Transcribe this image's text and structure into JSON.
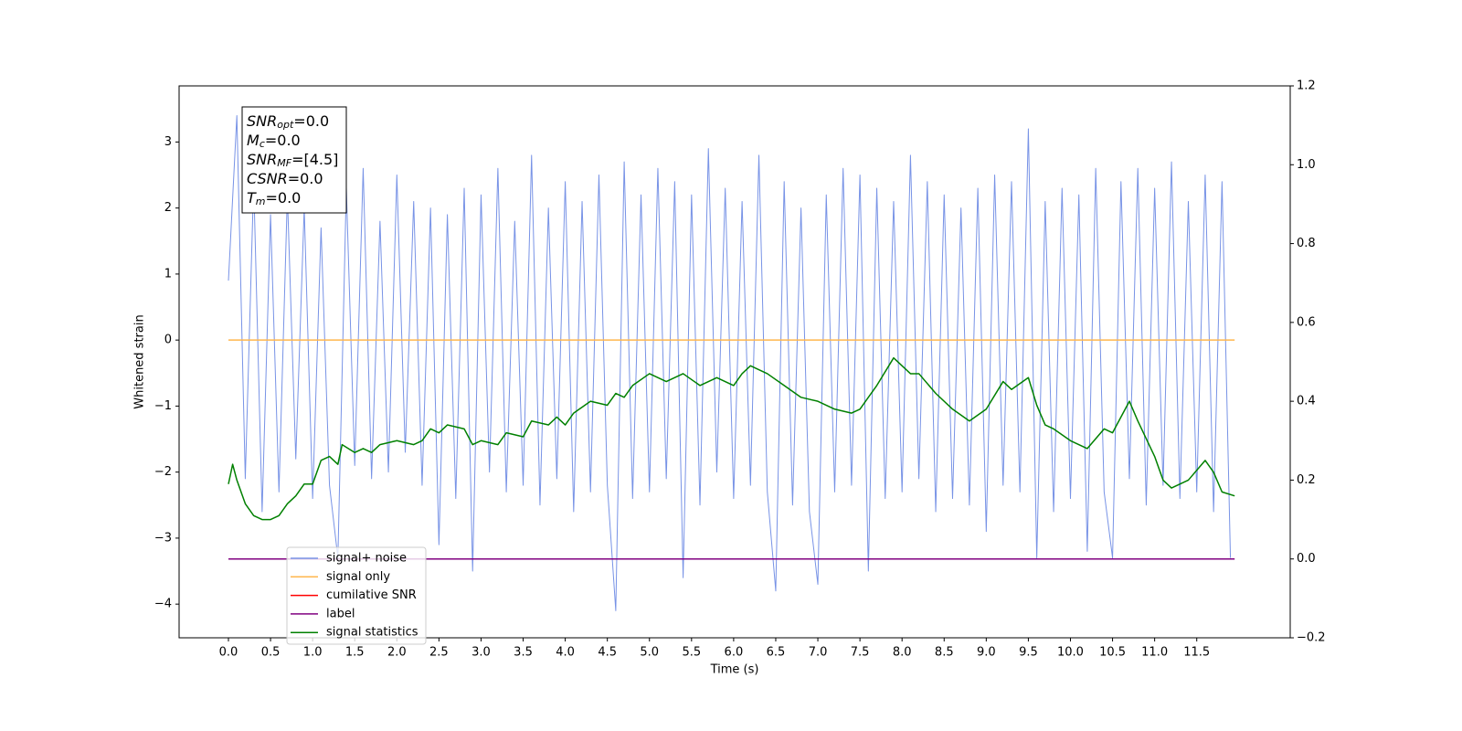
{
  "chart_data": {
    "type": "line",
    "xlabel": "Time (s)",
    "ylabel": "Whitened strain",
    "xlim": [
      -0.586,
      12.61
    ],
    "ylim": [
      -4.51,
      3.85
    ],
    "y2lim": [
      -0.2,
      1.2
    ],
    "xticks": [
      {
        "value": 0,
        "label": "0.0"
      },
      {
        "value": 0.5,
        "label": "0.5"
      },
      {
        "value": 1,
        "label": "1.0"
      },
      {
        "value": 1.5,
        "label": "1.5"
      },
      {
        "value": 2,
        "label": "2.0"
      },
      {
        "value": 2.5,
        "label": "2.5"
      },
      {
        "value": 3,
        "label": "3.0"
      },
      {
        "value": 3.5,
        "label": "3.5"
      },
      {
        "value": 4,
        "label": "4.0"
      },
      {
        "value": 4.5,
        "label": "4.5"
      },
      {
        "value": 5,
        "label": "5.0"
      },
      {
        "value": 5.5,
        "label": "5.5"
      },
      {
        "value": 6,
        "label": "6.0"
      },
      {
        "value": 6.5,
        "label": "6.5"
      },
      {
        "value": 7,
        "label": "7.0"
      },
      {
        "value": 7.5,
        "label": "7.5"
      },
      {
        "value": 8,
        "label": "8.0"
      },
      {
        "value": 8.5,
        "label": "8.5"
      },
      {
        "value": 9,
        "label": "9.0"
      },
      {
        "value": 9.5,
        "label": "9.5"
      },
      {
        "value": 10,
        "label": "10.0"
      },
      {
        "value": 10.5,
        "label": "10.5"
      },
      {
        "value": 11,
        "label": "11.0"
      },
      {
        "value": 11.5,
        "label": "11.5"
      }
    ],
    "yticks": [
      {
        "value": -4,
        "label": "−4"
      },
      {
        "value": -3,
        "label": "−3"
      },
      {
        "value": -2,
        "label": "−2"
      },
      {
        "value": -1,
        "label": "−1"
      },
      0,
      1,
      2,
      3
    ],
    "y2ticks": [
      {
        "value": -0.2,
        "label": "−0.2"
      },
      {
        "value": 0,
        "label": "0.0"
      },
      {
        "value": 0.2,
        "label": "0.2"
      },
      {
        "value": 0.4,
        "label": "0.4"
      },
      {
        "value": 0.6,
        "label": "0.6"
      },
      {
        "value": 0.8,
        "label": "0.8"
      },
      {
        "value": 1,
        "label": "1.0"
      },
      {
        "value": 1.2,
        "label": "1.2"
      }
    ],
    "annotations": [
      {
        "main": "SNR",
        "sub": "opt",
        "text": "=0.0"
      },
      {
        "main": "M",
        "sub": "c",
        "text": "=0.0"
      },
      {
        "main": "SNR",
        "sub": "MF",
        "text": "=[4.5]"
      },
      {
        "main": "CSNR",
        "sub": null,
        "text": "=0.0"
      },
      {
        "main": "T",
        "sub": "m",
        "text": "=0.0"
      }
    ],
    "series": [
      {
        "name": "signal+ noise",
        "color": "#7893e6",
        "axis": "y",
        "x": [
          0,
          0.1,
          0.2,
          0.3,
          0.4,
          0.5,
          0.6,
          0.7,
          0.8,
          0.9,
          1,
          1.1,
          1.2,
          1.3,
          1.4,
          1.5,
          1.6,
          1.7,
          1.8,
          1.9,
          2,
          2.1,
          2.2,
          2.3,
          2.4,
          2.5,
          2.6,
          2.7,
          2.8,
          2.9,
          3,
          3.1,
          3.2,
          3.3,
          3.4,
          3.5,
          3.6,
          3.7,
          3.8,
          3.9,
          4,
          4.1,
          4.2,
          4.3,
          4.4,
          4.5,
          4.6,
          4.7,
          4.8,
          4.9,
          5,
          5.1,
          5.2,
          5.3,
          5.4,
          5.5,
          5.6,
          5.7,
          5.8,
          5.9,
          6,
          6.1,
          6.2,
          6.3,
          6.4,
          6.5,
          6.6,
          6.7,
          6.8,
          6.9,
          7,
          7.1,
          7.2,
          7.3,
          7.4,
          7.5,
          7.6,
          7.7,
          7.8,
          7.9,
          8,
          8.1,
          8.2,
          8.3,
          8.4,
          8.5,
          8.6,
          8.7,
          8.8,
          8.9,
          9,
          9.1,
          9.2,
          9.3,
          9.4,
          9.5,
          9.6,
          9.7,
          9.8,
          9.9,
          10,
          10.1,
          10.2,
          10.3,
          10.4,
          10.5,
          10.6,
          10.7,
          10.8,
          10.9,
          11,
          11.1,
          11.2,
          11.3,
          11.4,
          11.5,
          11.6,
          11.7,
          11.8,
          11.9
        ],
        "values": [
          0.9,
          3.4,
          -2.1,
          2.4,
          -2.6,
          1.9,
          -2.3,
          2.2,
          -1.8,
          2.0,
          -2.4,
          1.7,
          -2.2,
          -3.3,
          2.3,
          -1.9,
          2.6,
          -2.1,
          1.8,
          -2.0,
          2.5,
          -1.7,
          2.1,
          -2.2,
          2.0,
          -3.1,
          1.9,
          -2.4,
          2.3,
          -3.5,
          2.2,
          -2.0,
          2.6,
          -2.3,
          1.8,
          -2.2,
          2.8,
          -2.5,
          2.0,
          -2.1,
          2.4,
          -2.6,
          2.1,
          -2.3,
          2.5,
          -2.2,
          -4.1,
          2.7,
          -2.4,
          2.2,
          -2.3,
          2.6,
          -2.1,
          2.4,
          -3.6,
          2.2,
          -2.5,
          2.9,
          -2.0,
          2.3,
          -2.4,
          2.1,
          -2.2,
          2.8,
          -2.3,
          -3.8,
          2.4,
          -2.5,
          2.0,
          -2.6,
          -3.7,
          2.2,
          -2.3,
          2.6,
          -2.2,
          2.5,
          -3.5,
          2.3,
          -2.4,
          2.1,
          -2.3,
          2.8,
          -2.1,
          2.4,
          -2.6,
          2.2,
          -2.4,
          2.0,
          -2.5,
          2.3,
          -2.9,
          2.5,
          -2.2,
          2.4,
          -2.3,
          3.2,
          -3.3,
          2.1,
          -2.6,
          2.3,
          -2.4,
          2.2,
          -3.2,
          2.6,
          -2.3,
          -3.3,
          2.4,
          -2.1,
          2.6,
          -2.5,
          2.3,
          -2.2,
          2.7,
          -2.4,
          2.1,
          -2.3,
          2.5,
          -2.6,
          2.4,
          -3.3
        ]
      },
      {
        "name": "signal only",
        "color": "#ffb74d",
        "axis": "y",
        "x": [
          0,
          11.95
        ],
        "values": [
          0,
          0
        ]
      },
      {
        "name": "cumilative SNR",
        "color": "#ff0000",
        "axis": "y2",
        "x": [],
        "values": []
      },
      {
        "name": "label",
        "color": "#800080",
        "axis": "y2",
        "x": [
          0,
          11.95
        ],
        "values": [
          0,
          0
        ]
      },
      {
        "name": "signal statistics",
        "color": "#008000",
        "axis": "y2",
        "x": [
          0,
          0.05,
          0.1,
          0.2,
          0.3,
          0.4,
          0.5,
          0.6,
          0.7,
          0.8,
          0.9,
          1,
          1.1,
          1.2,
          1.3,
          1.35,
          1.5,
          1.6,
          1.7,
          1.8,
          2,
          2.2,
          2.3,
          2.4,
          2.5,
          2.6,
          2.8,
          2.9,
          3,
          3.2,
          3.3,
          3.5,
          3.6,
          3.8,
          3.9,
          4,
          4.1,
          4.3,
          4.5,
          4.6,
          4.7,
          4.8,
          5,
          5.2,
          5.4,
          5.6,
          5.8,
          6,
          6.1,
          6.2,
          6.4,
          6.6,
          6.8,
          7,
          7.2,
          7.4,
          7.5,
          7.6,
          7.7,
          7.9,
          8.1,
          8.2,
          8.4,
          8.6,
          8.8,
          9,
          9.2,
          9.3,
          9.5,
          9.6,
          9.7,
          9.8,
          10,
          10.2,
          10.4,
          10.5,
          10.7,
          10.8,
          11,
          11.1,
          11.2,
          11.4,
          11.6,
          11.7,
          11.8,
          11.95
        ],
        "values": [
          0.19,
          0.24,
          0.2,
          0.14,
          0.11,
          0.1,
          0.1,
          0.11,
          0.14,
          0.16,
          0.19,
          0.19,
          0.25,
          0.26,
          0.24,
          0.29,
          0.27,
          0.28,
          0.27,
          0.29,
          0.3,
          0.29,
          0.3,
          0.33,
          0.32,
          0.34,
          0.33,
          0.29,
          0.3,
          0.29,
          0.32,
          0.31,
          0.35,
          0.34,
          0.36,
          0.34,
          0.37,
          0.4,
          0.39,
          0.42,
          0.41,
          0.44,
          0.47,
          0.45,
          0.47,
          0.44,
          0.46,
          0.44,
          0.47,
          0.49,
          0.47,
          0.44,
          0.41,
          0.4,
          0.38,
          0.37,
          0.38,
          0.41,
          0.44,
          0.51,
          0.47,
          0.47,
          0.42,
          0.38,
          0.35,
          0.38,
          0.45,
          0.43,
          0.46,
          0.39,
          0.34,
          0.33,
          0.3,
          0.28,
          0.33,
          0.32,
          0.4,
          0.35,
          0.26,
          0.2,
          0.18,
          0.2,
          0.25,
          0.22,
          0.17,
          0.16
        ]
      }
    ]
  }
}
